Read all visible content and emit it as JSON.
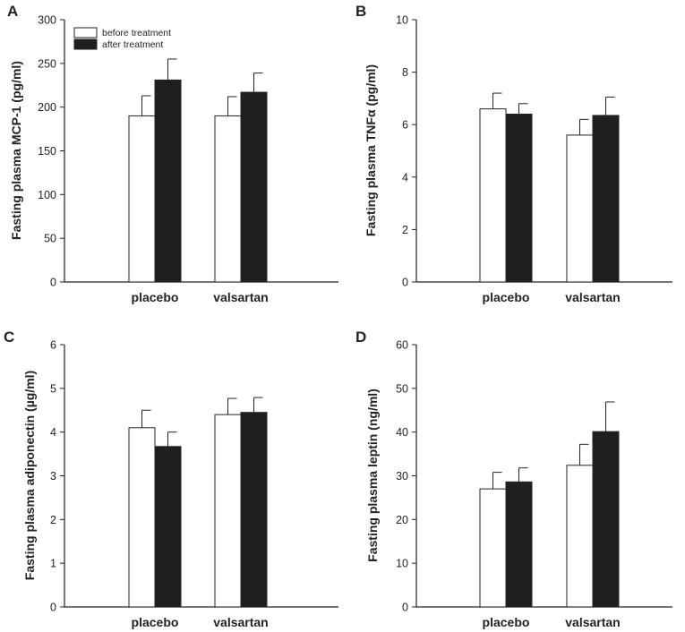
{
  "legend": {
    "before": "before treatment",
    "after": "after treatment"
  },
  "colors": {
    "before": "#ffffff",
    "after": "#1f1f1f",
    "stroke": "#222222"
  },
  "chart_data": [
    {
      "panel": "A",
      "type": "bar",
      "ylabel": "Fasting plasma MCP-1  (pg/ml)",
      "categories": [
        "placebo",
        "valsartan"
      ],
      "ylim": [
        0,
        300
      ],
      "yticks": [
        "0",
        "50",
        "100",
        "150",
        "200",
        "250",
        "300"
      ],
      "series": [
        {
          "name": "before treatment",
          "values": [
            190,
            190
          ],
          "errors": [
            23,
            22
          ]
        },
        {
          "name": "after treatment",
          "values": [
            231,
            217
          ],
          "errors": [
            24,
            22
          ]
        }
      ]
    },
    {
      "panel": "B",
      "type": "bar",
      "ylabel": "Fasting plasma TNFα  (pg/ml)",
      "categories": [
        "placebo",
        "valsartan"
      ],
      "ylim": [
        0,
        10
      ],
      "yticks": [
        "0",
        "2",
        "4",
        "6",
        "8",
        "10"
      ],
      "series": [
        {
          "name": "before treatment",
          "values": [
            6.6,
            5.6
          ],
          "errors": [
            0.6,
            0.6
          ]
        },
        {
          "name": "after treatment",
          "values": [
            6.4,
            6.35
          ],
          "errors": [
            0.4,
            0.7
          ]
        }
      ]
    },
    {
      "panel": "C",
      "type": "bar",
      "ylabel": "Fasting plasma adiponectin  (µg/ml)",
      "categories": [
        "placebo",
        "valsartan"
      ],
      "ylim": [
        0,
        6
      ],
      "yticks": [
        "0",
        "1",
        "2",
        "3",
        "4",
        "5",
        "6"
      ],
      "series": [
        {
          "name": "before treatment",
          "values": [
            4.1,
            4.4
          ],
          "errors": [
            0.4,
            0.37
          ]
        },
        {
          "name": "after treatment",
          "values": [
            3.67,
            4.45
          ],
          "errors": [
            0.33,
            0.34
          ]
        }
      ]
    },
    {
      "panel": "D",
      "type": "bar",
      "ylabel": "Fasting plasma leptin  (ng/ml)",
      "categories": [
        "placebo",
        "valsartan"
      ],
      "ylim": [
        0,
        60
      ],
      "yticks": [
        "0",
        "10",
        "20",
        "30",
        "40",
        "50",
        "60"
      ],
      "series": [
        {
          "name": "before treatment",
          "values": [
            27,
            32.4
          ],
          "errors": [
            3.8,
            4.8
          ]
        },
        {
          "name": "after treatment",
          "values": [
            28.6,
            40.1
          ],
          "errors": [
            3.2,
            6.8
          ]
        }
      ]
    }
  ]
}
